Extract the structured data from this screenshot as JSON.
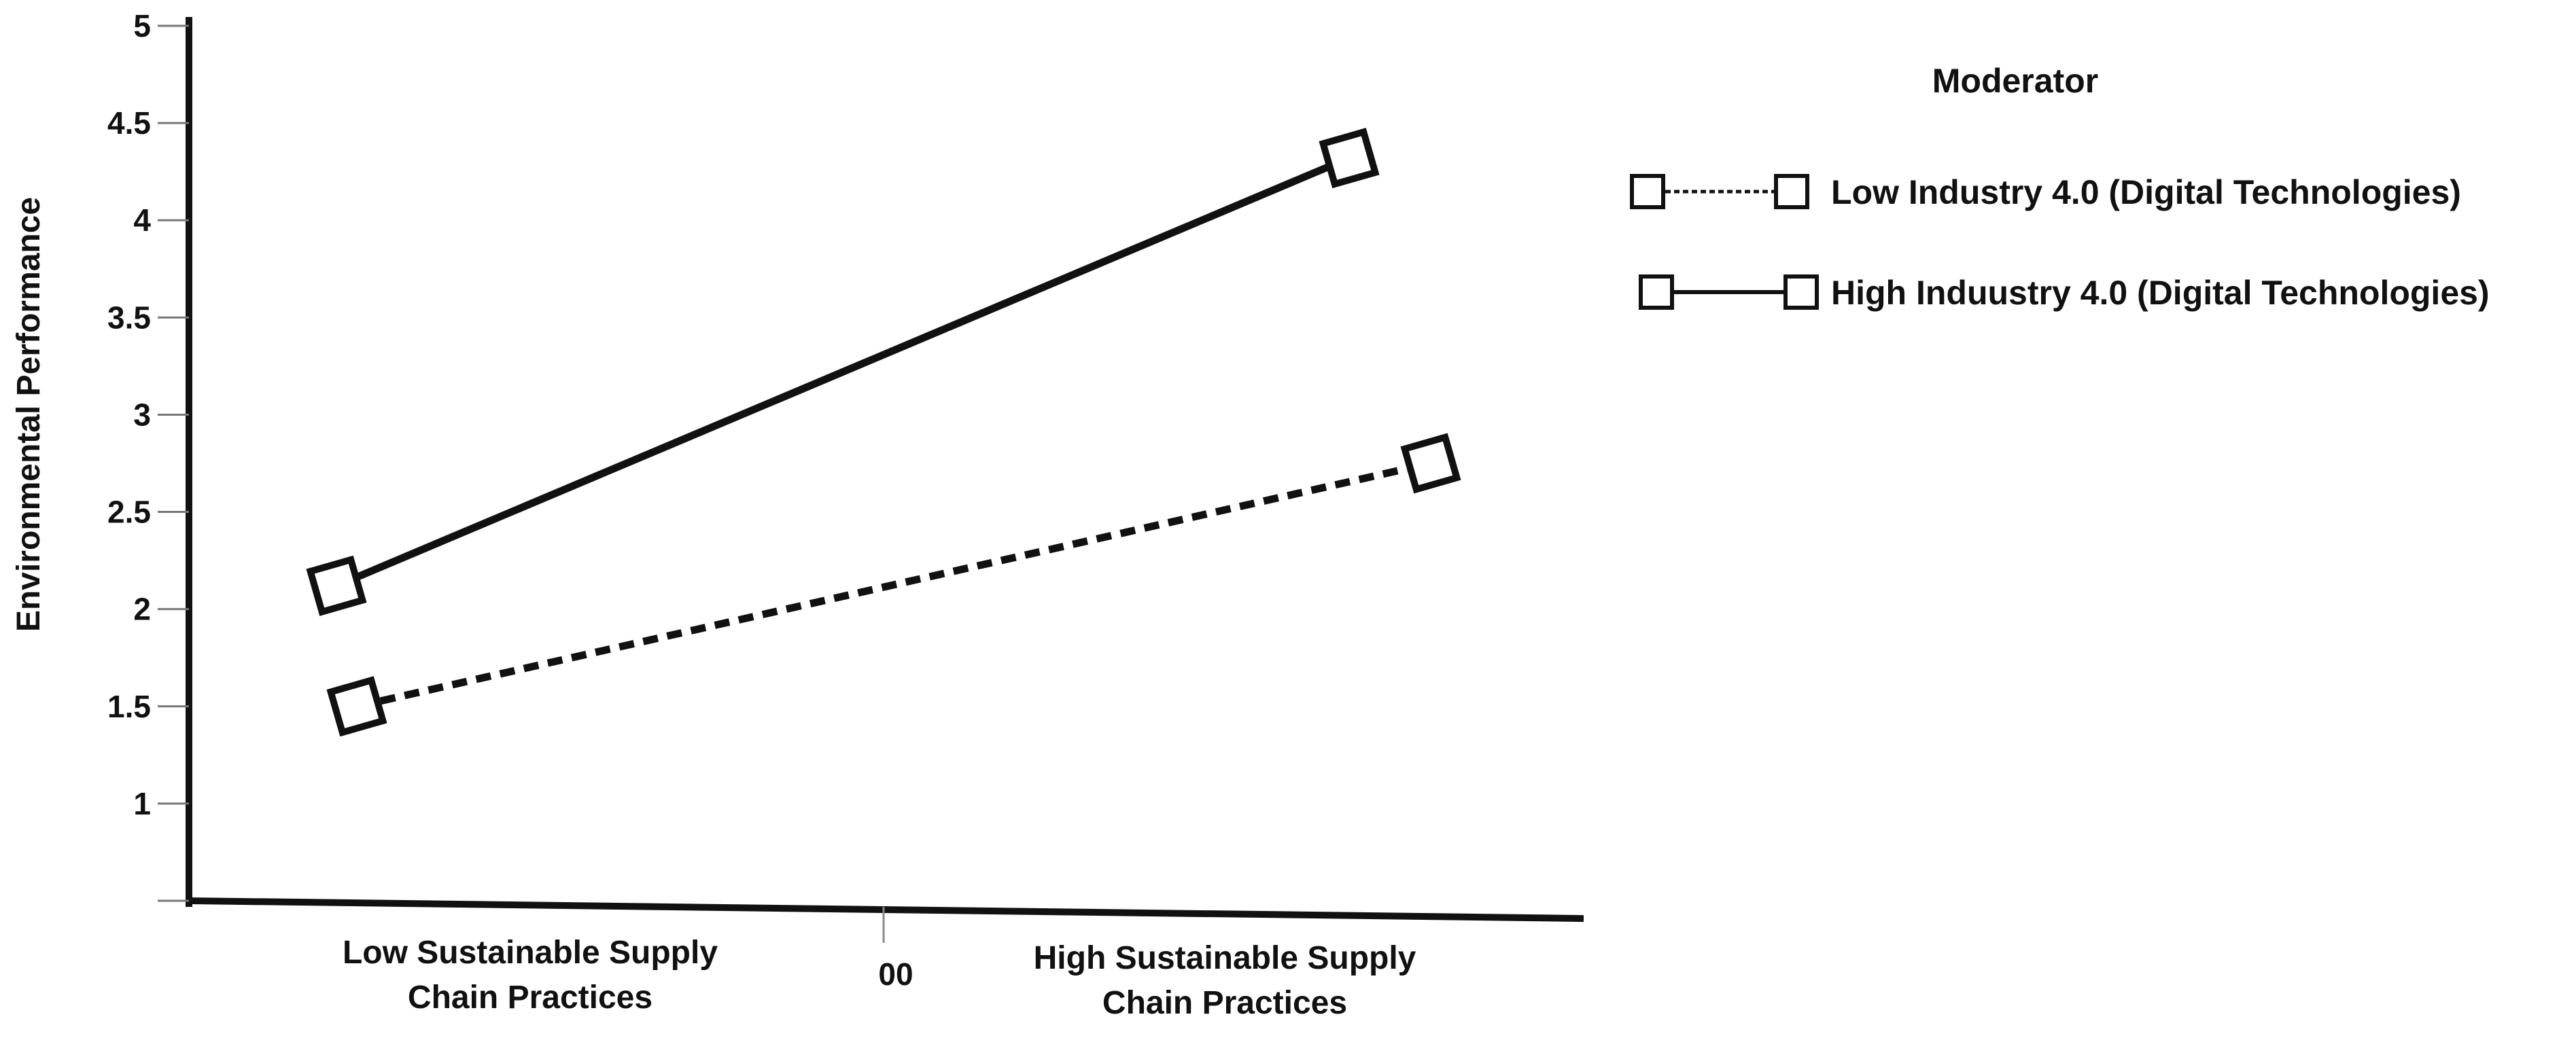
{
  "chart_data": {
    "type": "line",
    "title": "",
    "ylabel": "Environmental Performance",
    "ylim": [
      0.5,
      5
    ],
    "yticks": [
      1,
      1.5,
      2,
      2.5,
      3,
      3.5,
      4,
      4.5,
      5
    ],
    "ytick_labels": [
      "1",
      "1.5",
      "2",
      "2.5",
      "3",
      "3.5",
      "4",
      "4.5",
      "5"
    ],
    "categories": [
      [
        "Low Sustainable Supply",
        "Chain Practices"
      ],
      [
        "High Sustainable Supply",
        "Chain Practices"
      ]
    ],
    "center_tick_label": "00",
    "legend": {
      "title": "Moderator",
      "placement": "top-right"
    },
    "series": [
      {
        "name": "Low Industry 4.0 (Digital Technologies)",
        "style": "dotted",
        "marker": "square",
        "color": "#111111",
        "values": [
          1.5,
          2.75
        ]
      },
      {
        "name": "High Induustry 4.0 (Digital Technologies)",
        "style": "solid",
        "marker": "square",
        "color": "#111111",
        "values": [
          2.12,
          4.32
        ]
      }
    ]
  }
}
